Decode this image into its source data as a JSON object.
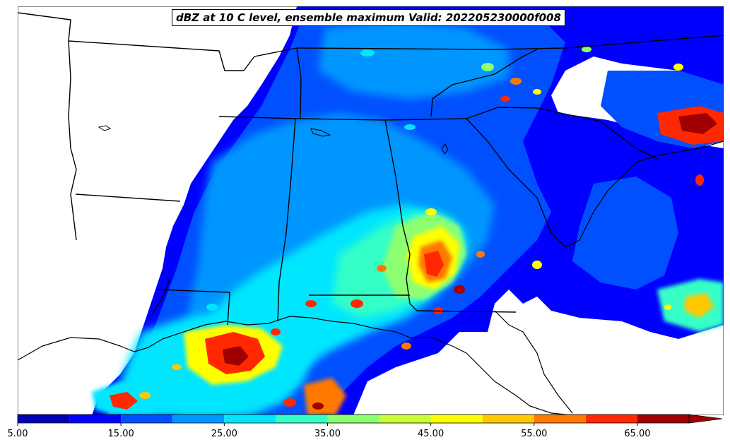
{
  "title": "dBZ at 10 C level, ensemble maximum Valid: 202205230000f008",
  "colorbar": {
    "labels": [
      "5.00",
      "15.00",
      "25.00",
      "35.00",
      "45.00",
      "55.00",
      "65.00"
    ],
    "levels": [
      5,
      10,
      15,
      20,
      25,
      30,
      35,
      40,
      45,
      50,
      55,
      60,
      65,
      70
    ],
    "colors": [
      "#0000b4",
      "#0000ff",
      "#0050ff",
      "#0096ff",
      "#00e6ff",
      "#35ffc6",
      "#8cff73",
      "#c8ff37",
      "#ffff00",
      "#ffc800",
      "#ff7800",
      "#ff2800",
      "#a00000"
    ],
    "extend": "max",
    "extend_color": "#a00000"
  },
  "map": {
    "field": "reflectivity (dBZ)",
    "region": "southeastern United States"
  }
}
